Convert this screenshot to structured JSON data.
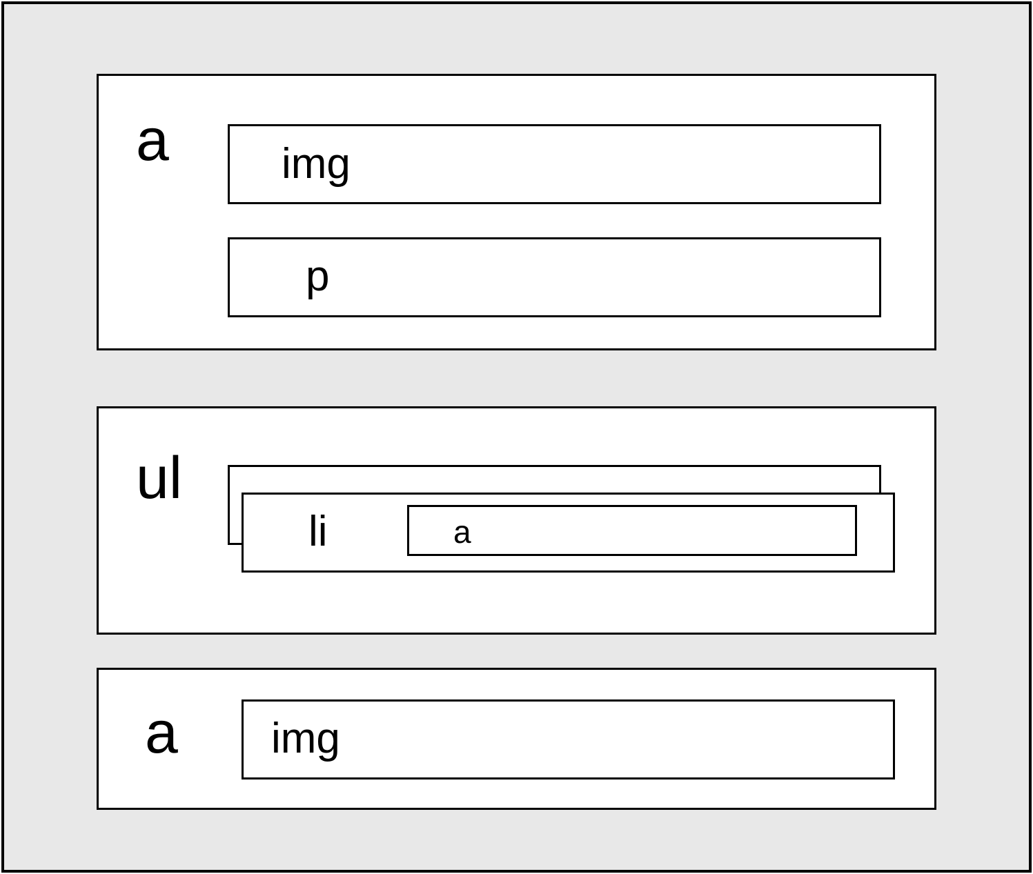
{
  "diagram": {
    "nodes": {
      "block_a1": {
        "label": "a"
      },
      "img1": {
        "label": "img"
      },
      "p1": {
        "label": "p"
      },
      "block_ul": {
        "label": "ul"
      },
      "li": {
        "label": "li"
      },
      "li_a": {
        "label": "a"
      },
      "block_a2": {
        "label": "a"
      },
      "img2": {
        "label": "img"
      }
    },
    "colors": {
      "background": "#e8e8e8",
      "box_fill": "#ffffff",
      "stroke": "#000000"
    }
  }
}
